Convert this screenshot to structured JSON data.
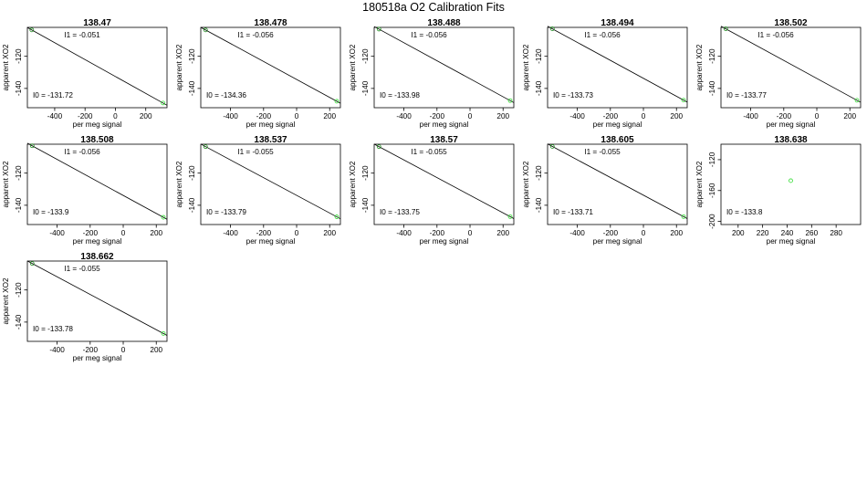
{
  "title": "180518a   O2 Calibration Fits",
  "xlabel": "per meg signal",
  "ylabel": "apparent XO2",
  "colors": {
    "line": "#000000",
    "point_a": "#1a8a1a",
    "point_b": "#33dd33"
  },
  "chart_data": [
    {
      "type": "scatter",
      "title": "138.47",
      "xlim": [
        -580,
        340
      ],
      "ylim": [
        -152,
        -102
      ],
      "xticks": [
        -400,
        -200,
        0,
        200
      ],
      "xticklabels": [
        "-400",
        "-200",
        "0",
        "200"
      ],
      "yticks": [
        -140,
        -120
      ],
      "yticklabels": [
        "-140",
        "-120"
      ],
      "points": [
        [
          -551,
          -103.6
        ],
        [
          314,
          -149.1
        ]
      ],
      "fit": {
        "slope": -0.051,
        "intercept": -131.72
      },
      "i1": "I1 =  -0.051",
      "i0": "I0 =  -131.72"
    },
    {
      "type": "scatter",
      "title": "138.478",
      "xlim": [
        -580,
        265
      ],
      "ylim": [
        -152,
        -102
      ],
      "xticks": [
        -400,
        -200,
        0,
        200
      ],
      "xticklabels": [
        "-400",
        "-200",
        "0",
        "200"
      ],
      "yticks": [
        -140,
        -120
      ],
      "yticklabels": [
        "-140",
        "-120"
      ],
      "points": [
        [
          -551,
          -103.6
        ],
        [
          243,
          -148.0
        ]
      ],
      "fit": {
        "slope": -0.056,
        "intercept": -134.36
      },
      "i1": "I1 =  -0.056",
      "i0": "I0 =  -134.36"
    },
    {
      "type": "scatter",
      "title": "138.488",
      "xlim": [
        -580,
        265
      ],
      "ylim": [
        -152,
        -102
      ],
      "xticks": [
        -400,
        -200,
        0,
        200
      ],
      "xticklabels": [
        "-400",
        "-200",
        "0",
        "200"
      ],
      "yticks": [
        -140,
        -120
      ],
      "yticklabels": [
        "-140",
        "-120"
      ],
      "points": [
        [
          -551,
          -103.1
        ],
        [
          243,
          -147.6
        ]
      ],
      "fit": {
        "slope": -0.056,
        "intercept": -133.98
      },
      "i1": "I1 =  -0.056",
      "i0": "I0 =  -133.98"
    },
    {
      "type": "scatter",
      "title": "138.494",
      "xlim": [
        -580,
        265
      ],
      "ylim": [
        -152,
        -102
      ],
      "xticks": [
        -400,
        -200,
        0,
        200
      ],
      "xticklabels": [
        "-400",
        "-200",
        "0",
        "200"
      ],
      "yticks": [
        -140,
        -120
      ],
      "yticklabels": [
        "-140",
        "-120"
      ],
      "points": [
        [
          -551,
          -102.9
        ],
        [
          243,
          -147.3
        ]
      ],
      "fit": {
        "slope": -0.056,
        "intercept": -133.73
      },
      "i1": "I1 =  -0.056",
      "i0": "I0 =  -133.73"
    },
    {
      "type": "scatter",
      "title": "138.502",
      "xlim": [
        -580,
        265
      ],
      "ylim": [
        -152,
        -102
      ],
      "xticks": [
        -400,
        -200,
        0,
        200
      ],
      "xticklabels": [
        "-400",
        "-200",
        "0",
        "200"
      ],
      "yticks": [
        -140,
        -120
      ],
      "yticklabels": [
        "-140",
        "-120"
      ],
      "points": [
        [
          -551,
          -102.9
        ],
        [
          243,
          -147.4
        ]
      ],
      "fit": {
        "slope": -0.056,
        "intercept": -133.77
      },
      "i1": "I1 =  -0.056",
      "i0": "I0 =  -133.77"
    },
    {
      "type": "scatter",
      "title": "138.508",
      "xlim": [
        -580,
        265
      ],
      "ylim": [
        -152,
        -102
      ],
      "xticks": [
        -400,
        -200,
        0,
        200
      ],
      "xticklabels": [
        "-400",
        "-200",
        "0",
        "200"
      ],
      "yticks": [
        -140,
        -120
      ],
      "yticklabels": [
        "-140",
        "-120"
      ],
      "points": [
        [
          -551,
          -103.0
        ],
        [
          243,
          -147.5
        ]
      ],
      "fit": {
        "slope": -0.056,
        "intercept": -133.9
      },
      "i1": "I1 =  -0.056",
      "i0": "I0 =  -133.9"
    },
    {
      "type": "scatter",
      "title": "138.537",
      "xlim": [
        -580,
        265
      ],
      "ylim": [
        -152,
        -102
      ],
      "xticks": [
        -400,
        -200,
        0,
        200
      ],
      "xticklabels": [
        "-400",
        "-200",
        "0",
        "200"
      ],
      "yticks": [
        -140,
        -120
      ],
      "yticklabels": [
        "-140",
        "-120"
      ],
      "points": [
        [
          -551,
          -103.5
        ],
        [
          243,
          -147.2
        ]
      ],
      "fit": {
        "slope": -0.055,
        "intercept": -133.79
      },
      "i1": "I1 =  -0.055",
      "i0": "I0 =  -133.79"
    },
    {
      "type": "scatter",
      "title": "138.57",
      "xlim": [
        -580,
        265
      ],
      "ylim": [
        -152,
        -102
      ],
      "xticks": [
        -400,
        -200,
        0,
        200
      ],
      "xticklabels": [
        "-400",
        "-200",
        "0",
        "200"
      ],
      "yticks": [
        -140,
        -120
      ],
      "yticklabels": [
        "-140",
        "-120"
      ],
      "points": [
        [
          -551,
          -103.5
        ],
        [
          243,
          -147.1
        ]
      ],
      "fit": {
        "slope": -0.055,
        "intercept": -133.75
      },
      "i1": "I1 =  -0.055",
      "i0": "I0 =  -133.75"
    },
    {
      "type": "scatter",
      "title": "138.605",
      "xlim": [
        -580,
        265
      ],
      "ylim": [
        -152,
        -102
      ],
      "xticks": [
        -400,
        -200,
        0,
        200
      ],
      "xticklabels": [
        "-400",
        "-200",
        "0",
        "200"
      ],
      "yticks": [
        -140,
        -120
      ],
      "yticklabels": [
        "-140",
        "-120"
      ],
      "points": [
        [
          -551,
          -103.4
        ],
        [
          243,
          -147.1
        ]
      ],
      "fit": {
        "slope": -0.055,
        "intercept": -133.71
      },
      "i1": "I1 =  -0.055",
      "i0": "I0 =  -133.71"
    },
    {
      "type": "scatter",
      "title": "138.638",
      "xlim": [
        186,
        300
      ],
      "ylim": [
        -204,
        -100
      ],
      "xticks": [
        200,
        220,
        240,
        260,
        280
      ],
      "xticklabels": [
        "200",
        "220",
        "240",
        "260",
        "280"
      ],
      "yticks": [
        -200,
        -160,
        -120
      ],
      "yticklabels": [
        "-200",
        "-160",
        "-120"
      ],
      "points": [
        [
          243,
          -147.2
        ]
      ],
      "fit": null,
      "i1": "",
      "i0": "I0 =  -133.8"
    },
    {
      "type": "scatter",
      "title": "138.662",
      "xlim": [
        -580,
        265
      ],
      "ylim": [
        -152,
        -102
      ],
      "xticks": [
        -400,
        -200,
        0,
        200
      ],
      "xticklabels": [
        "-400",
        "-200",
        "0",
        "200"
      ],
      "yticks": [
        -140,
        -120
      ],
      "yticklabels": [
        "-140",
        "-120"
      ],
      "points": [
        [
          -551,
          -103.5
        ],
        [
          243,
          -147.1
        ]
      ],
      "fit": {
        "slope": -0.055,
        "intercept": -133.78
      },
      "i1": "I1 =  -0.055",
      "i0": "I0 =  -133.78"
    }
  ]
}
